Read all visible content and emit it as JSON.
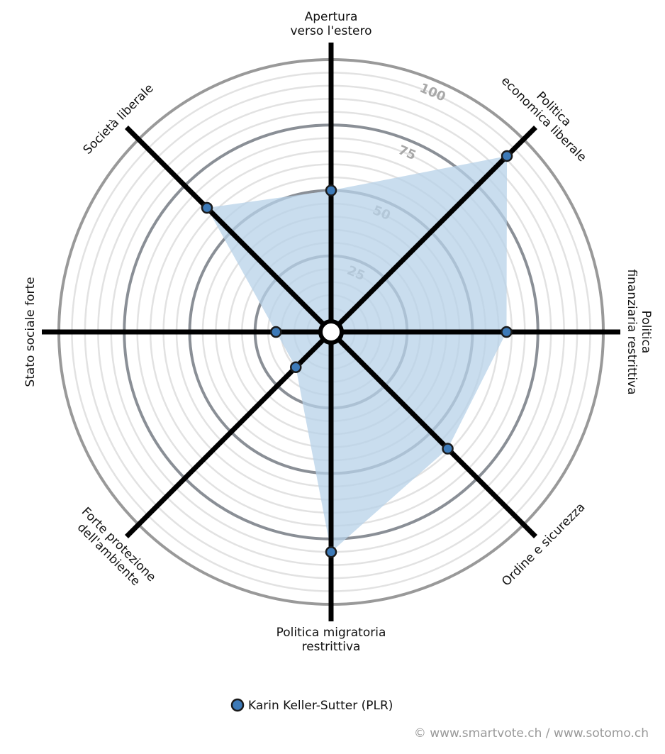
{
  "chart_data": {
    "type": "radar",
    "categories": [
      [
        "Apertura",
        "verso l'estero"
      ],
      [
        "Politica",
        "economica liberale"
      ],
      [
        "Politica",
        "finanziaria restrittiva"
      ],
      [
        "Ordine e sicurezza"
      ],
      [
        "Politica migratoria",
        "restrittiva"
      ],
      [
        "Forte protezione",
        "dell'ambiente"
      ],
      [
        "Stato sociale forte"
      ],
      [
        "Società liberale"
      ]
    ],
    "series": [
      {
        "name": "Karin Keller-Sutter (PLR)",
        "color": "#3d7ab8",
        "fill": "#b7d1e8",
        "values": [
          50,
          91,
          63,
          59,
          80,
          15,
          17,
          63
        ]
      }
    ],
    "rlim": [
      0,
      100
    ],
    "rticks": [
      25,
      50,
      75,
      100
    ],
    "grid": true,
    "credit": "© www.smartvote.ch / www.sotomo.ch"
  }
}
